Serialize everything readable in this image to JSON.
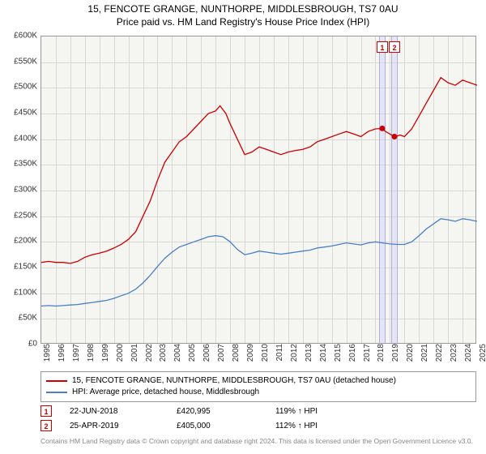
{
  "title": {
    "line1": "15, FENCOTE GRANGE, NUNTHORPE, MIDDLESBROUGH, TS7 0AU",
    "line2": "Price paid vs. HM Land Registry's House Price Index (HPI)"
  },
  "chart": {
    "type": "line",
    "background_color": "#f5f5f2",
    "grid_color": "#d8d8d4",
    "border_color": "#999999",
    "ylim": [
      0,
      600000
    ],
    "ytick_step": 50000,
    "ytick_labels": [
      "£0",
      "£50K",
      "£100K",
      "£150K",
      "£200K",
      "£250K",
      "£300K",
      "£350K",
      "£400K",
      "£450K",
      "£500K",
      "£550K",
      "£600K"
    ],
    "xlim": [
      1995,
      2025
    ],
    "xtick_step": 1,
    "xtick_labels": [
      "1995",
      "1996",
      "1997",
      "1998",
      "1999",
      "2000",
      "2001",
      "2002",
      "2003",
      "2004",
      "2005",
      "2006",
      "2007",
      "2008",
      "2009",
      "2010",
      "2011",
      "2012",
      "2013",
      "2014",
      "2015",
      "2016",
      "2017",
      "2018",
      "2019",
      "2020",
      "2021",
      "2022",
      "2023",
      "2024",
      "2025"
    ],
    "series": [
      {
        "name": "property",
        "color": "#cc0000",
        "line_width": 1.3,
        "values": [
          [
            1995,
            160000
          ],
          [
            1995.5,
            162000
          ],
          [
            1996,
            160000
          ],
          [
            1996.5,
            160000
          ],
          [
            1997,
            158000
          ],
          [
            1997.5,
            162000
          ],
          [
            1998,
            170000
          ],
          [
            1998.5,
            175000
          ],
          [
            1999,
            178000
          ],
          [
            1999.5,
            182000
          ],
          [
            2000,
            188000
          ],
          [
            2000.5,
            195000
          ],
          [
            2001,
            205000
          ],
          [
            2001.5,
            220000
          ],
          [
            2002,
            250000
          ],
          [
            2002.5,
            280000
          ],
          [
            2003,
            320000
          ],
          [
            2003.5,
            355000
          ],
          [
            2004,
            375000
          ],
          [
            2004.5,
            395000
          ],
          [
            2005,
            405000
          ],
          [
            2005.5,
            420000
          ],
          [
            2006,
            435000
          ],
          [
            2006.5,
            450000
          ],
          [
            2007,
            455000
          ],
          [
            2007.3,
            465000
          ],
          [
            2007.7,
            450000
          ],
          [
            2008,
            430000
          ],
          [
            2008.5,
            400000
          ],
          [
            2009,
            370000
          ],
          [
            2009.5,
            375000
          ],
          [
            2010,
            385000
          ],
          [
            2010.5,
            380000
          ],
          [
            2011,
            375000
          ],
          [
            2011.5,
            370000
          ],
          [
            2012,
            375000
          ],
          [
            2012.5,
            378000
          ],
          [
            2013,
            380000
          ],
          [
            2013.5,
            385000
          ],
          [
            2014,
            395000
          ],
          [
            2014.5,
            400000
          ],
          [
            2015,
            405000
          ],
          [
            2015.5,
            410000
          ],
          [
            2016,
            415000
          ],
          [
            2016.5,
            410000
          ],
          [
            2017,
            405000
          ],
          [
            2017.5,
            415000
          ],
          [
            2018,
            420000
          ],
          [
            2018.47,
            420995
          ],
          [
            2018.7,
            415000
          ],
          [
            2019,
            410000
          ],
          [
            2019.31,
            405000
          ],
          [
            2019.7,
            408000
          ],
          [
            2020,
            405000
          ],
          [
            2020.5,
            420000
          ],
          [
            2021,
            445000
          ],
          [
            2021.5,
            470000
          ],
          [
            2022,
            495000
          ],
          [
            2022.5,
            520000
          ],
          [
            2023,
            510000
          ],
          [
            2023.5,
            505000
          ],
          [
            2024,
            515000
          ],
          [
            2024.5,
            510000
          ],
          [
            2025,
            505000
          ]
        ]
      },
      {
        "name": "hpi",
        "color": "#4a7fc4",
        "line_width": 1.3,
        "values": [
          [
            1995,
            75000
          ],
          [
            1995.5,
            76000
          ],
          [
            1996,
            75000
          ],
          [
            1996.5,
            76000
          ],
          [
            1997,
            77000
          ],
          [
            1997.5,
            78000
          ],
          [
            1998,
            80000
          ],
          [
            1998.5,
            82000
          ],
          [
            1999,
            84000
          ],
          [
            1999.5,
            86000
          ],
          [
            2000,
            90000
          ],
          [
            2000.5,
            95000
          ],
          [
            2001,
            100000
          ],
          [
            2001.5,
            108000
          ],
          [
            2002,
            120000
          ],
          [
            2002.5,
            135000
          ],
          [
            2003,
            152000
          ],
          [
            2003.5,
            168000
          ],
          [
            2004,
            180000
          ],
          [
            2004.5,
            190000
          ],
          [
            2005,
            195000
          ],
          [
            2005.5,
            200000
          ],
          [
            2006,
            205000
          ],
          [
            2006.5,
            210000
          ],
          [
            2007,
            212000
          ],
          [
            2007.5,
            210000
          ],
          [
            2008,
            200000
          ],
          [
            2008.5,
            185000
          ],
          [
            2009,
            175000
          ],
          [
            2009.5,
            178000
          ],
          [
            2010,
            182000
          ],
          [
            2010.5,
            180000
          ],
          [
            2011,
            178000
          ],
          [
            2011.5,
            176000
          ],
          [
            2012,
            178000
          ],
          [
            2012.5,
            180000
          ],
          [
            2013,
            182000
          ],
          [
            2013.5,
            184000
          ],
          [
            2014,
            188000
          ],
          [
            2014.5,
            190000
          ],
          [
            2015,
            192000
          ],
          [
            2015.5,
            195000
          ],
          [
            2016,
            198000
          ],
          [
            2016.5,
            196000
          ],
          [
            2017,
            194000
          ],
          [
            2017.5,
            198000
          ],
          [
            2018,
            200000
          ],
          [
            2018.5,
            198000
          ],
          [
            2019,
            196000
          ],
          [
            2019.5,
            195000
          ],
          [
            2020,
            195000
          ],
          [
            2020.5,
            200000
          ],
          [
            2021,
            212000
          ],
          [
            2021.5,
            225000
          ],
          [
            2022,
            235000
          ],
          [
            2022.5,
            245000
          ],
          [
            2023,
            243000
          ],
          [
            2023.5,
            240000
          ],
          [
            2024,
            245000
          ],
          [
            2024.5,
            243000
          ],
          [
            2025,
            240000
          ]
        ]
      }
    ],
    "markers": [
      {
        "id": "1",
        "x": 2018.47,
        "y": 420995,
        "band_color": "rgba(200,200,255,0.35)"
      },
      {
        "id": "2",
        "x": 2019.31,
        "y": 405000,
        "band_color": "rgba(200,200,255,0.35)"
      }
    ]
  },
  "legend": {
    "items": [
      {
        "color": "#cc0000",
        "label": "15, FENCOTE GRANGE, NUNTHORPE, MIDDLESBROUGH, TS7 0AU (detached house)"
      },
      {
        "color": "#4a7fc4",
        "label": "HPI: Average price, detached house, Middlesbrough"
      }
    ]
  },
  "transactions": [
    {
      "id": "1",
      "date": "22-JUN-2018",
      "price": "£420,995",
      "pct": "119% ↑ HPI"
    },
    {
      "id": "2",
      "date": "25-APR-2019",
      "price": "£405,000",
      "pct": "112% ↑ HPI"
    }
  ],
  "footer": "Contains HM Land Registry data © Crown copyright and database right 2024. This data is licensed under the Open Government Licence v3.0."
}
